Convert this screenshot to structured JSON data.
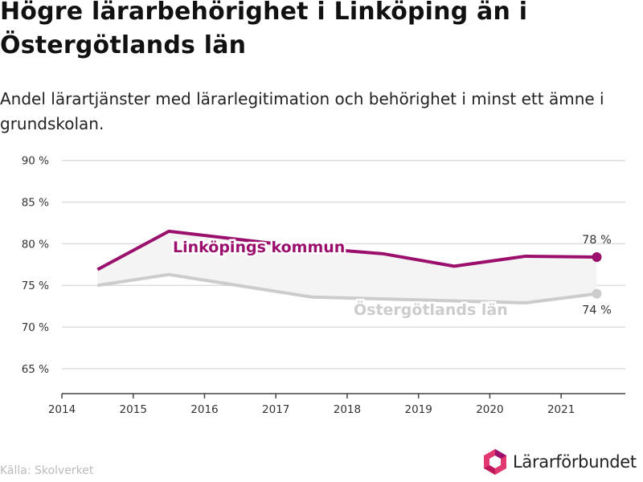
{
  "title": "Högre lärarbehörighet i Linköping än i Östergötlands län",
  "subtitle": "Andel lärartjänster med lärarlegitimation och behörighet i minst ett ämne i grundskolan.",
  "source": "Källa: Skolverket",
  "brand": {
    "name": "Lärarförbundet",
    "logo_icon": "hexagon-logo-icon"
  },
  "colors": {
    "kommun": "#9b0f6d",
    "lan": "#cccccc",
    "band": "#f4f4f4",
    "grid": "#dddddd",
    "axis": "#444444"
  },
  "chart_data": {
    "type": "line",
    "x_ticks": [
      "2014",
      "2015",
      "2016",
      "2017",
      "2018",
      "2019",
      "2020",
      "2021"
    ],
    "y_ticks": [
      "65 %",
      "70 %",
      "75 %",
      "80 %",
      "85 %",
      "90 %"
    ],
    "xlim": [
      2014,
      2021.9
    ],
    "ylim": [
      62,
      92
    ],
    "grid": true,
    "series": [
      {
        "name": "Linköpings kommun",
        "x": [
          2014.5,
          2015.5,
          2017.5,
          2018.5,
          2019.5,
          2020.5,
          2021.5
        ],
        "values": [
          76.9,
          81.5,
          79.5,
          78.8,
          77.3,
          78.5,
          78.4
        ],
        "end_label": "78 %"
      },
      {
        "name": "Östergötlands län",
        "x": [
          2014.5,
          2015.5,
          2017.5,
          2020.5,
          2021.5
        ],
        "values": [
          75.0,
          76.3,
          73.6,
          72.9,
          74.0
        ],
        "end_label": "74 %"
      }
    ]
  }
}
